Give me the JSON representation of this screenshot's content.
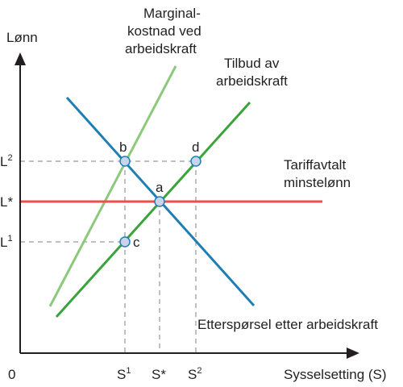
{
  "axes": {
    "y_label": "Lønn",
    "x_label": "Sysselsetting (S)",
    "origin_label": "0"
  },
  "y_ticks": [
    {
      "base": "L",
      "sup": "2"
    },
    {
      "base": "L*",
      "sup": ""
    },
    {
      "base": "L",
      "sup": "1"
    }
  ],
  "x_ticks": [
    {
      "base": "S",
      "sup": "1"
    },
    {
      "base": "S*",
      "sup": ""
    },
    {
      "base": "S",
      "sup": "2"
    }
  ],
  "curves": {
    "marginal_cost": {
      "lines": [
        "Marginal-",
        "kostnad ved",
        "arbeidskraft"
      ],
      "color": "#8cc97d"
    },
    "supply": {
      "lines": [
        "Tilbud av",
        "arbeidskraft"
      ],
      "color": "#3aa33a"
    },
    "demand": {
      "lines": [
        "Etterspørsel etter arbeidskraft"
      ],
      "color": "#1f7fb2"
    },
    "min_wage": {
      "lines": [
        "Tariffavtalt",
        "minstelønn"
      ],
      "color": "#e8514f"
    }
  },
  "points": {
    "a": "a",
    "b": "b",
    "c": "c",
    "d": "d"
  },
  "colors": {
    "axis": "#231f20",
    "guide": "#808080",
    "point_fill": "#c9d3ea",
    "point_stroke": "#1f7fb2"
  }
}
